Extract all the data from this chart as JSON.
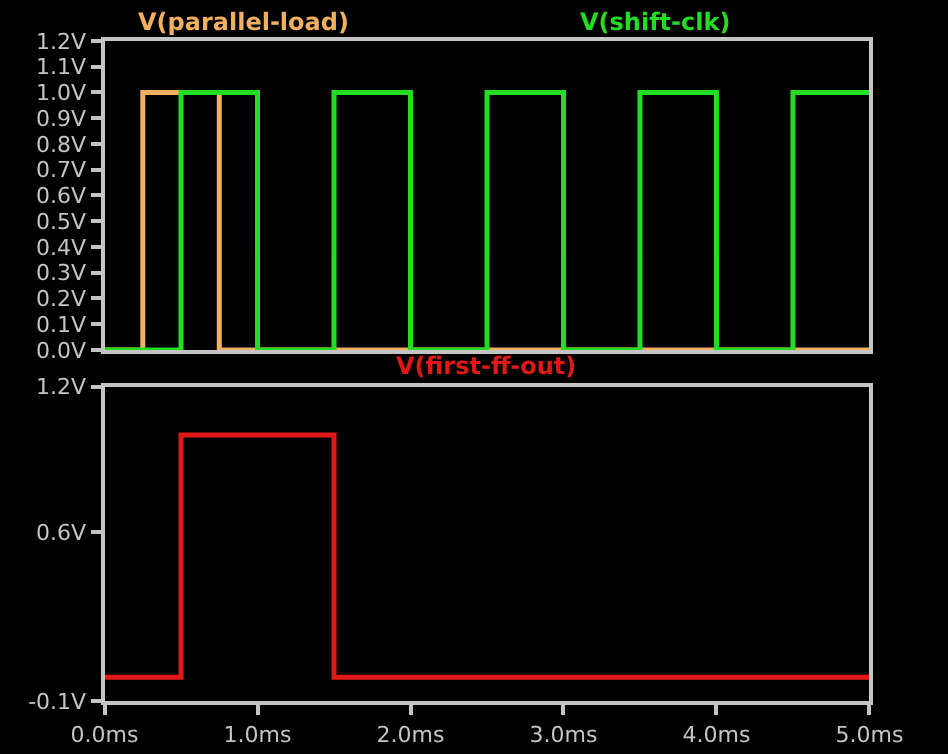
{
  "chart_data": [
    {
      "type": "step",
      "xlim": [
        0,
        5
      ],
      "ylim": [
        0,
        1.2
      ],
      "tick_labels": "y",
      "legend": "top",
      "yticks": [
        {
          "value": 0,
          "label": "0.0V"
        },
        {
          "value": 0.1,
          "label": "0.1V"
        },
        {
          "value": 0.2,
          "label": "0.2V"
        },
        {
          "value": 0.3,
          "label": "0.3V"
        },
        {
          "value": 0.4,
          "label": "0.4V"
        },
        {
          "value": 0.5,
          "label": "0.5V"
        },
        {
          "value": 0.6,
          "label": "0.6V"
        },
        {
          "value": 0.7,
          "label": "0.7V"
        },
        {
          "value": 0.8,
          "label": "0.8V"
        },
        {
          "value": 0.9,
          "label": "0.9V"
        },
        {
          "value": 1.0,
          "label": "1.0V"
        },
        {
          "value": 1.1,
          "label": "1.1V"
        },
        {
          "value": 1.2,
          "label": "1.2V"
        }
      ],
      "series": [
        {
          "name": "V(parallel-load)",
          "color": "#f0b060",
          "x": [
            0,
            0.25,
            0.75,
            5
          ],
          "values": [
            0,
            1,
            0,
            0
          ]
        },
        {
          "name": "V(shift-clk)",
          "color": "#22dd22",
          "x": [
            0,
            0.5,
            1.0,
            1.5,
            2.0,
            2.5,
            3.0,
            3.5,
            4.0,
            4.5,
            5.0
          ],
          "values": [
            0,
            1,
            0,
            1,
            0,
            1,
            0,
            1,
            0,
            1,
            1
          ]
        }
      ]
    },
    {
      "type": "step",
      "xlim": [
        0,
        5
      ],
      "ylim": [
        -0.1,
        1.2
      ],
      "legend": "top",
      "xticks": [
        {
          "value": 0,
          "label": "0.0ms"
        },
        {
          "value": 1,
          "label": "1.0ms"
        },
        {
          "value": 2,
          "label": "2.0ms"
        },
        {
          "value": 3,
          "label": "3.0ms"
        },
        {
          "value": 4,
          "label": "4.0ms"
        },
        {
          "value": 5,
          "label": "5.0ms"
        }
      ],
      "yticks": [
        {
          "value": -0.1,
          "label": "-0.1V"
        },
        {
          "value": 0.6,
          "label": "0.6V"
        },
        {
          "value": 1.2,
          "label": "1.2V"
        }
      ],
      "series": [
        {
          "name": "V(first-ff-out)",
          "color": "#e01818",
          "x": [
            0,
            0.5,
            1.5,
            5
          ],
          "values": [
            0,
            1,
            0,
            0
          ]
        }
      ]
    }
  ]
}
